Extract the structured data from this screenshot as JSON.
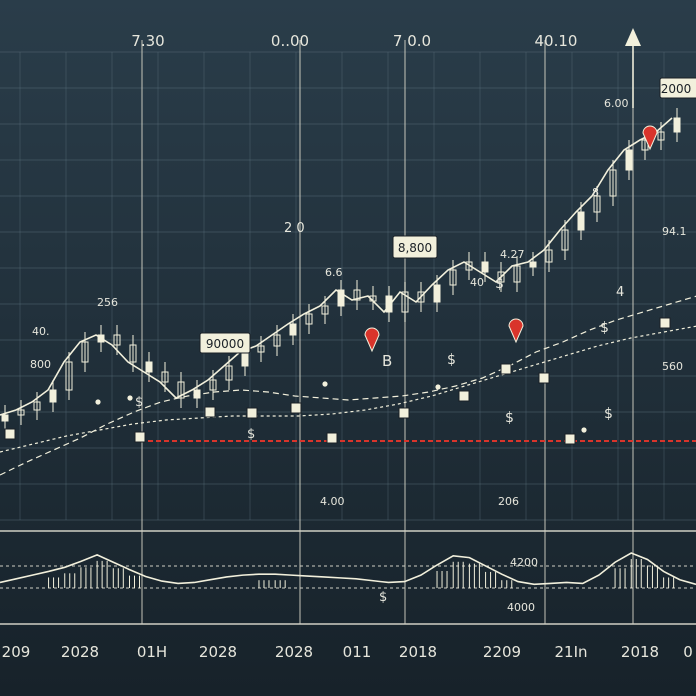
{
  "colors": {
    "background_top": "#2a3d4a",
    "background_bottom": "#17222a",
    "grid": "#5f7480",
    "candle": "#f2f0dc",
    "line": "#f2f0dc",
    "marker_red": "#d9342b",
    "support_red": "#d9342b",
    "label_box": "#f2f0dc"
  },
  "chart_data": {
    "type": "line",
    "grid": true,
    "top_labels": [
      "7.30",
      "0..00",
      "7 0.0",
      "40.10"
    ],
    "bottom_labels": [
      "209",
      "2028",
      "01H",
      "2028",
      "2028",
      "011",
      "2018",
      "2209",
      "21In",
      "2018",
      "0"
    ],
    "price_callouts": [
      "2000",
      "8,800",
      "90000"
    ],
    "annotations": [
      "6.00",
      "2 0",
      "6.6",
      "4.27",
      "40",
      "$",
      "8",
      "4",
      "$",
      "94.1",
      "256",
      "40.",
      "800",
      "B",
      "$",
      "$",
      "$",
      "$",
      "$",
      "4.00",
      "206",
      "560",
      "4200",
      "4000",
      "$"
    ],
    "series": [
      {
        "values": [
          415,
          410,
          402,
          390,
          362,
          342,
          335,
          345,
          362,
          372,
          382,
          398,
          390,
          380,
          366,
          352,
          346,
          335,
          324,
          314,
          306,
          290,
          300,
          296,
          312,
          292,
          302,
          285,
          270,
          262,
          272,
          282,
          266,
          262,
          250,
          230,
          212,
          196,
          170,
          150,
          140,
          132,
          118
        ]
      },
      {
        "values": [
          475,
          462,
          450,
          438,
          424,
          412,
          402,
          396,
          392,
          390,
          392,
          396,
          398,
          400,
          398,
          396,
          392,
          386,
          378,
          366,
          352,
          342,
          330,
          320,
          312,
          304,
          296
        ]
      },
      {
        "values": [
          452,
          444,
          436,
          430,
          424,
          420,
          418,
          416,
          416,
          416,
          414,
          410,
          404,
          396,
          386,
          376,
          366,
          356,
          346,
          338,
          332,
          326
        ]
      }
    ],
    "oscillator": [
      0.12,
      0.2,
      0.28,
      0.36,
      0.45,
      0.58,
      0.72,
      0.56,
      0.4,
      0.25,
      0.15,
      0.1,
      0.12,
      0.18,
      0.24,
      0.28,
      0.3,
      0.3,
      0.28,
      0.26,
      0.24,
      0.22,
      0.2,
      0.16,
      0.12,
      0.14,
      0.28,
      0.5,
      0.7,
      0.66,
      0.48,
      0.3,
      0.14,
      0.08,
      0.1,
      0.12,
      0.1,
      0.28,
      0.56,
      0.76,
      0.62,
      0.36,
      0.18,
      0.08
    ]
  }
}
